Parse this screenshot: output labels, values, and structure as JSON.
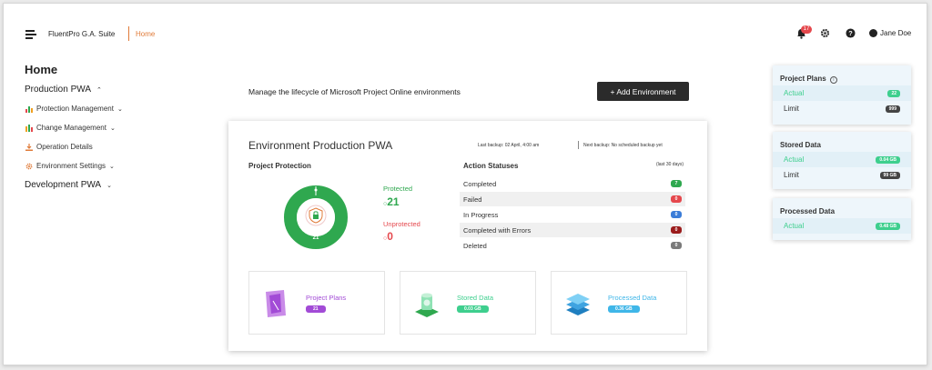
{
  "app": {
    "title": "FluentPro G.A. Suite",
    "breadcrumb": "Home"
  },
  "topbar": {
    "notifications": "17",
    "user_name": "Jane Doe"
  },
  "sidebar": {
    "title": "Home",
    "groups": [
      {
        "label": "Production PWA",
        "items": [
          {
            "label": "Protection Management"
          },
          {
            "label": "Change Management"
          },
          {
            "label": "Operation Details"
          },
          {
            "label": "Environment Settings"
          }
        ]
      },
      {
        "label": "Development PWA"
      }
    ]
  },
  "main": {
    "description": "Manage the lifecycle of Microsoft Project Online environments",
    "add_button": "+ Add Environment",
    "env": {
      "title": "Environment Production PWA",
      "last_backup": "Last backup: 02 April, 4:00 am",
      "next_backup": "Next backup: No scheduled backup yet",
      "protection": {
        "title": "Project Protection",
        "donut_value": "21",
        "protected_label": "Protected",
        "protected_value": "21",
        "unprotected_label": "Unprotected",
        "unprotected_value": "0"
      },
      "statuses": {
        "title": "Action Statuses",
        "period": "(last 30 days)",
        "rows": [
          {
            "label": "Completed",
            "value": "7",
            "color": "#2fa84f"
          },
          {
            "label": "Failed",
            "value": "0",
            "color": "#e5484d"
          },
          {
            "label": "In Progress",
            "value": "0",
            "color": "#3b7dd8"
          },
          {
            "label": "Completed with Errors",
            "value": "0",
            "color": "#9b1c1c"
          },
          {
            "label": "Deleted",
            "value": "0",
            "color": "#7a7a7a"
          }
        ]
      },
      "tiles": [
        {
          "label": "Project Plans",
          "value": "21",
          "color": "#a24bd6"
        },
        {
          "label": "Stored Data",
          "value": "0.03 GB",
          "color": "#3ecf8e"
        },
        {
          "label": "Processed Data",
          "value": "0.36 GB",
          "color": "#3fb6e8"
        }
      ]
    }
  },
  "summary": [
    {
      "title": "Project Plans",
      "info": "i",
      "rows": [
        {
          "label": "Actual",
          "value": "22",
          "color": "#3ecf8e"
        },
        {
          "label": "Limit",
          "value": "999",
          "color": "#444"
        }
      ]
    },
    {
      "title": "Stored Data",
      "rows": [
        {
          "label": "Actual",
          "value": "0.04 GB",
          "color": "#3ecf8e"
        },
        {
          "label": "Limit",
          "value": "99 GB",
          "color": "#444"
        }
      ]
    },
    {
      "title": "Processed Data",
      "rows": [
        {
          "label": "Actual",
          "value": "0.48 GB",
          "color": "#3ecf8e"
        }
      ]
    }
  ]
}
